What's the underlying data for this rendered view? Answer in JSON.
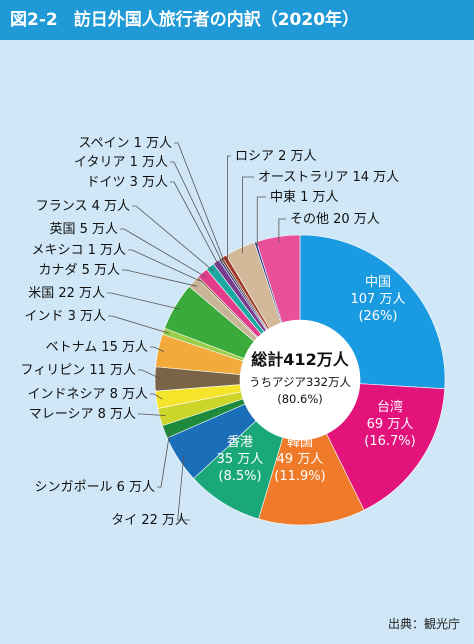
{
  "title": {
    "figure_number": "図2-2",
    "text": "訪日外国人旅行者の内訳（2020年）"
  },
  "source": "出典：観光庁",
  "total": {
    "line1": "総計412万人",
    "line2": "うちアジア332万人",
    "line3": "(80.6%)"
  },
  "chart_data": {
    "type": "pie",
    "title": "訪日外国人旅行者の内訳（2020年）",
    "unit": "万人",
    "total": 412,
    "slices": [
      {
        "label": "中国",
        "value": 107,
        "percent": "26%",
        "text": [
          "中国",
          "107 万人",
          "(26%)"
        ],
        "color": "#1a9ae0",
        "text_color": "#ffffff"
      },
      {
        "label": "台湾",
        "value": 69,
        "percent": "16.7%",
        "text": [
          "台湾",
          "69 万人",
          "(16.7%)"
        ],
        "color": "#e3137c",
        "text_color": "#ffffff"
      },
      {
        "label": "韓国",
        "value": 49,
        "percent": "11.9%",
        "text": [
          "韓国",
          "49 万人",
          "(11.9%)"
        ],
        "color": "#ee7a2a",
        "text_color": "#ffffff"
      },
      {
        "label": "香港",
        "value": 35,
        "percent": "8.5%",
        "text": [
          "香港",
          "35 万人",
          "(8.5%)"
        ],
        "color": "#1aa87a",
        "text_color": "#ffffff"
      },
      {
        "label": "タイ",
        "value": 22,
        "text": "タイ 22 万人",
        "color": "#1b6fb8"
      },
      {
        "label": "シンガポール",
        "value": 6,
        "text": "シンガポール 6 万人",
        "color": "#1e8a3c"
      },
      {
        "label": "マレーシア",
        "value": 8,
        "text": "マレーシア 8 万人",
        "color": "#cbd52a"
      },
      {
        "label": "インドネシア",
        "value": 8,
        "text": "インドネシア 8 万人",
        "color": "#f4e52a"
      },
      {
        "label": "フィリピン",
        "value": 11,
        "text": "フィリピン 11 万人",
        "color": "#7a6448"
      },
      {
        "label": "ベトナム",
        "value": 15,
        "text": "ベトナム 15 万人",
        "color": "#f2aa3a"
      },
      {
        "label": "インド",
        "value": 3,
        "text": "インド 3 万人",
        "color": "#9ccd4a"
      },
      {
        "label": "米国",
        "value": 22,
        "text": "米国 22 万人",
        "color": "#3aaa3a"
      },
      {
        "label": "カナダ",
        "value": 5,
        "text": "カナダ 5 万人",
        "color": "#c9b596"
      },
      {
        "label": "メキシコ",
        "value": 1,
        "text": "メキシコ 1 万人",
        "color": "#8a6a48"
      },
      {
        "label": "英国",
        "value": 5,
        "text": "英国 5 万人",
        "color": "#e03c8a"
      },
      {
        "label": "フランス",
        "value": 4,
        "text": "フランス 4 万人",
        "color": "#1aa8a0"
      },
      {
        "label": "ドイツ",
        "value": 3,
        "text": "ドイツ 3 万人",
        "color": "#7a3a90"
      },
      {
        "label": "イタリア",
        "value": 1,
        "text": "イタリア 1 万人",
        "color": "#2a3a7a"
      },
      {
        "label": "スペイン",
        "value": 1,
        "text": "スペイン 1 万人",
        "color": "#6a3a2a"
      },
      {
        "label": "ロシア",
        "value": 2,
        "text": "ロシア 2 万人",
        "color": "#a03a2a"
      },
      {
        "label": "オーストラリア",
        "value": 14,
        "text": "オーストラリア 14 万人",
        "color": "#d3b99a"
      },
      {
        "label": "中東",
        "value": 1,
        "text": "中東 1 万人",
        "color": "#1e3a8a"
      },
      {
        "label": "その他",
        "value": 20,
        "text": "その他 20 万人",
        "color": "#e8509a"
      }
    ]
  }
}
